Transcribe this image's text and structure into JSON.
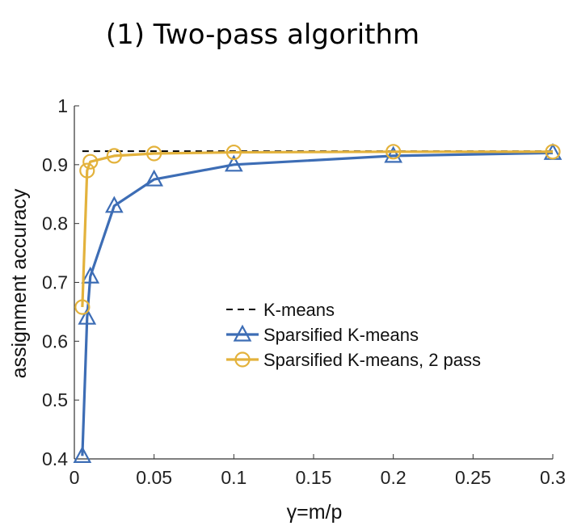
{
  "chart_data": {
    "type": "line",
    "title": "(1) Two-pass algorithm",
    "xlabel": "γ=m/p",
    "ylabel": "assignment accuracy",
    "xlim": [
      0,
      0.3
    ],
    "ylim": [
      0.4,
      1
    ],
    "xticks": [
      0,
      0.05,
      0.1,
      0.15,
      0.2,
      0.25,
      0.3
    ],
    "xtick_labels": [
      "0",
      "0.05",
      "0.1",
      "0.15",
      "0.2",
      "0.25",
      "0.3"
    ],
    "yticks": [
      0.4,
      0.5,
      0.6,
      0.7,
      0.8,
      0.9,
      1
    ],
    "ytick_labels": [
      "0.4",
      "0.5",
      "0.6",
      "0.7",
      "0.8",
      "0.9",
      "1"
    ],
    "legend_position": "center-right",
    "series": [
      {
        "name": "K-means",
        "style": "dashed",
        "marker": "none",
        "color": "#000000",
        "x": [
          0.005,
          0.3
        ],
        "y": [
          0.923,
          0.923
        ]
      },
      {
        "name": "Sparsified K-means",
        "style": "solid",
        "marker": "triangle",
        "color": "#3d6db5",
        "x": [
          0.005,
          0.008,
          0.01,
          0.025,
          0.05,
          0.1,
          0.2,
          0.3
        ],
        "y": [
          0.405,
          0.64,
          0.71,
          0.83,
          0.875,
          0.9,
          0.915,
          0.92
        ]
      },
      {
        "name": "Sparsified K-means, 2 pass",
        "style": "solid",
        "marker": "circle",
        "color": "#e3b23c",
        "x": [
          0.005,
          0.008,
          0.01,
          0.025,
          0.05,
          0.1,
          0.2,
          0.3
        ],
        "y": [
          0.658,
          0.89,
          0.905,
          0.915,
          0.919,
          0.921,
          0.922,
          0.922
        ]
      }
    ]
  }
}
